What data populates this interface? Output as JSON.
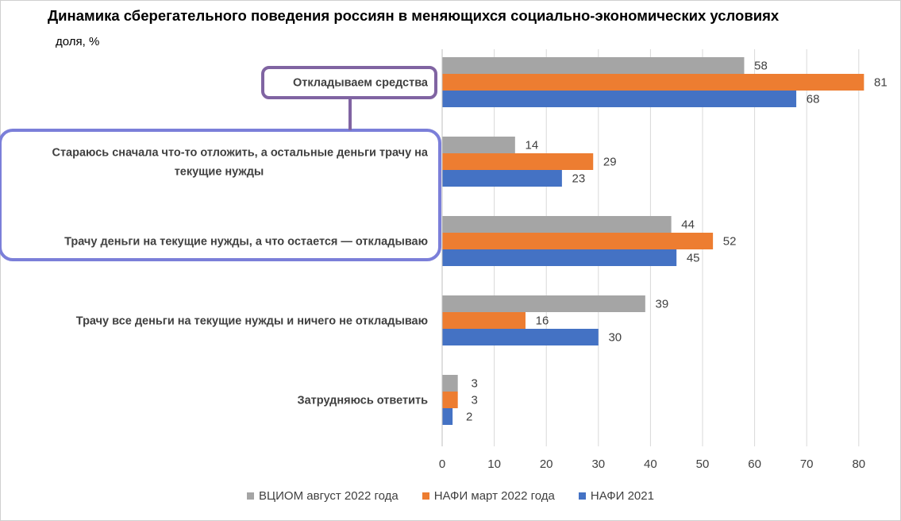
{
  "chart_data": {
    "type": "bar",
    "orientation": "horizontal",
    "title": "Динамика сберегательного поведения россиян в меняющихся социально-экономических условиях",
    "unit_label": "доля, %",
    "categories": [
      [
        "Откладываем средства"
      ],
      [
        "Стараюсь сначала что-то отложить, а остальные деньги трачу на",
        "текущие нужды"
      ],
      [
        "Трачу деньги на текущие нужды, а что остается — откладываю"
      ],
      [
        "Трачу все деньги на текущие нужды и ничего не откладываю"
      ],
      [
        "Затрудняюсь ответить"
      ]
    ],
    "series": [
      {
        "name": "ВЦИОМ август 2022 года",
        "color": "#a5a5a5",
        "values": [
          58,
          14,
          44,
          39,
          3
        ]
      },
      {
        "name": "НАФИ март 2022 года",
        "color": "#ed7d31",
        "values": [
          81,
          29,
          52,
          16,
          3
        ]
      },
      {
        "name": "НАФИ 2021",
        "color": "#4472c4",
        "values": [
          68,
          23,
          45,
          30,
          2
        ]
      }
    ],
    "xlim": [
      0,
      80
    ],
    "xticks": [
      0,
      10,
      20,
      30,
      40,
      50,
      60,
      70,
      80
    ],
    "grid": true,
    "legend": "bottom"
  },
  "annotations": {
    "purple_box_color": "#8064a2",
    "blue_box_color": "#7b7fd9"
  }
}
